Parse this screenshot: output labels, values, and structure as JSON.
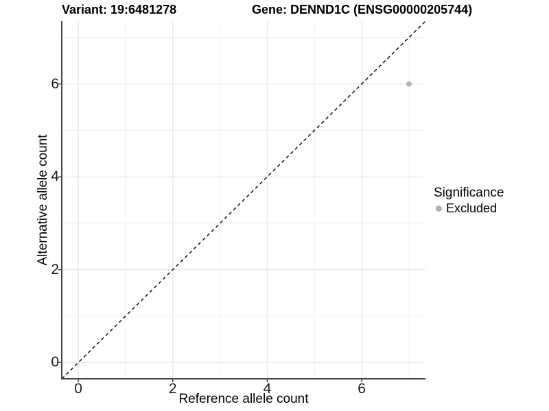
{
  "header": {
    "variant_title": "Variant: 19:6481278",
    "gene_title": "Gene: DENND1C (ENSG00000205744)"
  },
  "chart_data": {
    "type": "scatter",
    "xlabel": "Reference allele count",
    "ylabel": "Alternative allele count",
    "xlim": [
      -0.35,
      7.35
    ],
    "ylim": [
      -0.35,
      7.35
    ],
    "xticks": [
      0,
      2,
      4,
      6
    ],
    "yticks": [
      0,
      2,
      4,
      6
    ],
    "xticks_minor": [
      1,
      3,
      5,
      7
    ],
    "yticks_minor": [
      1,
      3,
      5,
      7
    ],
    "grid": true,
    "identity_line": {
      "equation": "y = x",
      "style": "dashed",
      "color": "#000000"
    },
    "series": [
      {
        "name": "Excluded",
        "color": "#b5b5b5",
        "points": [
          {
            "x": 7,
            "y": 6
          }
        ]
      }
    ],
    "legend": {
      "position": "right",
      "title": "Significance",
      "items": [
        {
          "label": "Excluded",
          "color": "#b0b0b0"
        }
      ]
    }
  },
  "colors": {
    "background": "#ffffff",
    "grid_major": "#e7e7e7",
    "grid_minor": "#efefef",
    "axis_line": "#444444",
    "tick_mark": "#444444",
    "tick_label": "#1a1a1a",
    "point": "#b5b5b5"
  }
}
